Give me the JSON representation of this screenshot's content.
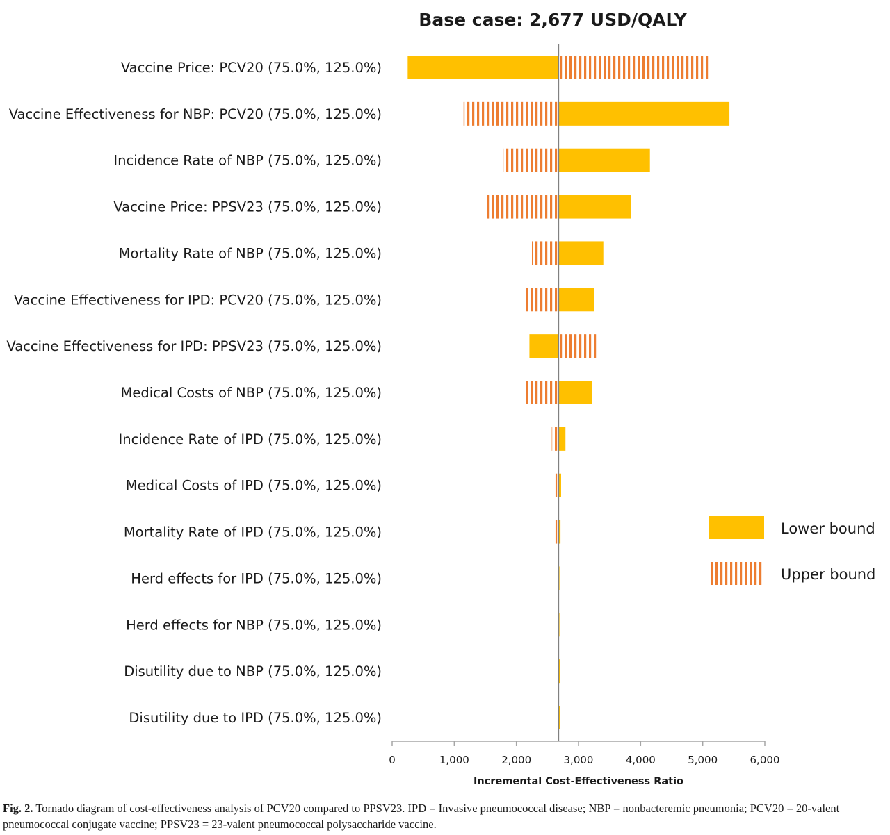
{
  "chart_data": {
    "type": "bar",
    "orientation": "horizontal",
    "subtype": "tornado",
    "title": "Base case: 2,677 USD/QALY",
    "base_case": 2677,
    "xlabel": "Incremental Cost-Effectiveness Ratio",
    "xlim": [
      0,
      6000
    ],
    "xticks": [
      "0",
      "1,000",
      "2,000",
      "3,000",
      "4,000",
      "5,000",
      "6,000"
    ],
    "xtick_values": [
      0,
      1000,
      2000,
      3000,
      4000,
      5000,
      6000
    ],
    "legend_position": "right",
    "colors": {
      "lower": "#FFC000",
      "upper": "#ED7D31"
    },
    "legend": {
      "lower": "Lower bound",
      "upper": "Upper bound"
    },
    "categories": [
      "Vaccine Price: PCV20 (75.0%, 125.0%)",
      "Vaccine Effectiveness for NBP: PCV20 (75.0%, 125.0%)",
      "Incidence Rate of NBP (75.0%, 125.0%)",
      "Vaccine Price: PPSV23 (75.0%, 125.0%)",
      "Mortality Rate of NBP (75.0%, 125.0%)",
      "Vaccine Effectiveness for IPD: PCV20 (75.0%, 125.0%)",
      "Vaccine Effectiveness for IPD: PPSV23 (75.0%, 125.0%)",
      "Medical Costs of NBP (75.0%, 125.0%)",
      "Incidence Rate of IPD (75.0%, 125.0%)",
      "Medical Costs of IPD (75.0%, 125.0%)",
      "Mortality Rate of IPD (75.0%, 125.0%)",
      "Herd effects for IPD (75.0%, 125.0%)",
      "Herd effects for NBP (75.0%, 125.0%)",
      "Disutility due to NBP (75.0%, 125.0%)",
      "Disutility due to IPD (75.0%, 125.0%)"
    ],
    "series": [
      {
        "name": "Lower bound",
        "values": [
          250,
          5430,
          4150,
          3840,
          3400,
          3250,
          2210,
          3220,
          2790,
          2720,
          2710,
          2690,
          2690,
          2700,
          2700
        ]
      },
      {
        "name": "Upper bound",
        "values": [
          5130,
          1150,
          1780,
          1520,
          2250,
          2150,
          3320,
          2150,
          2570,
          2630,
          2630,
          2660,
          2660,
          2670,
          2670
        ]
      }
    ]
  },
  "caption": {
    "label": "Fig. 2.",
    "text": " Tornado diagram of cost-effectiveness analysis of PCV20 compared to PPSV23. IPD = Invasive pneumococcal disease; NBP = nonbacteremic pneumonia; PCV20 = 20-valent pneumococcal conjugate vaccine; PPSV23 = 23-valent pneumococcal polysaccharide vaccine."
  }
}
